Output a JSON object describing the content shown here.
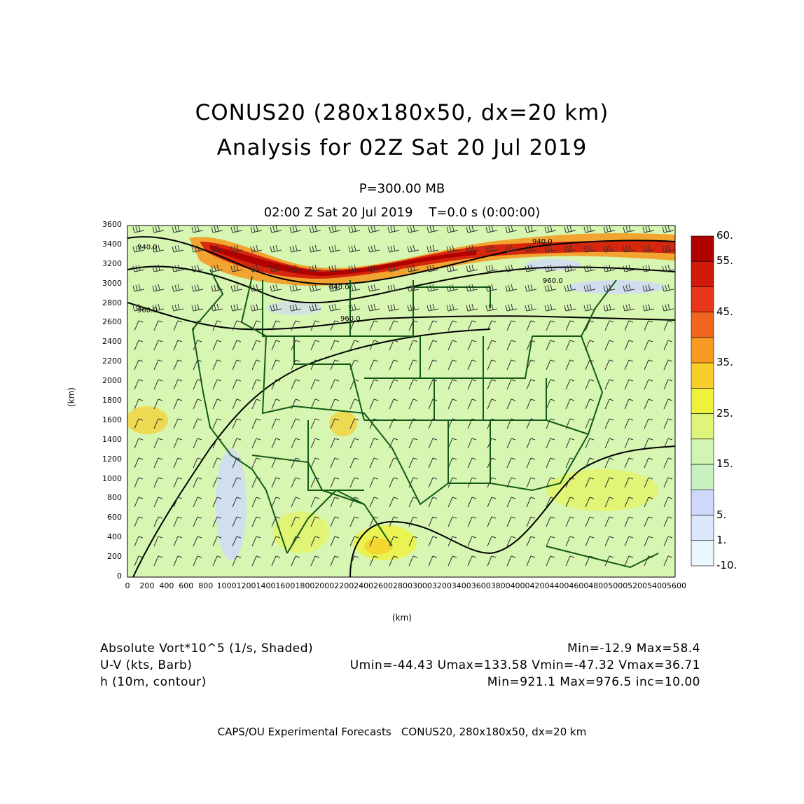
{
  "header": {
    "title_line1": "CONUS20 (280x180x50, dx=20 km)",
    "title_line2": "Analysis for 02Z Sat 20 Jul 2019",
    "pressure_level": "P=300.00 MB",
    "valid_time": "02:00 Z Sat 20 Jul 2019    T=0.0 s (0:00:00)"
  },
  "axes": {
    "x_label": "(km)",
    "y_label": "(km)",
    "x_ticks": [
      "0",
      "200",
      "400",
      "600",
      "800",
      "1000",
      "1200",
      "1400",
      "1600",
      "1800",
      "2000",
      "2200",
      "2400",
      "2600",
      "2800",
      "3000",
      "3200",
      "3400",
      "3600",
      "3800",
      "4000",
      "4200",
      "4400",
      "4600",
      "4800",
      "5000",
      "5200",
      "5400",
      "5600"
    ],
    "y_ticks": [
      "0",
      "200",
      "400",
      "600",
      "800",
      "1000",
      "1200",
      "1400",
      "1600",
      "1800",
      "2000",
      "2200",
      "2400",
      "2600",
      "2800",
      "3000",
      "3200",
      "3400",
      "3600"
    ],
    "x_range": [
      0,
      5600
    ],
    "y_range": [
      0,
      3600
    ]
  },
  "colorbar": {
    "labels": [
      "60.",
      "55.",
      "45.",
      "35.",
      "25.",
      "15.",
      "5.",
      "1.",
      "-10."
    ],
    "colors": [
      "#b00000",
      "#d21a0a",
      "#e8361c",
      "#f0661e",
      "#f59b22",
      "#f8cf2a",
      "#eef23a",
      "#dff57a",
      "#d3f5b4",
      "#c9f0bf",
      "#cfd8fb",
      "#dbe8fb",
      "#eaf6fb"
    ]
  },
  "contour_labels": [
    "940.0",
    "940.0",
    "960.0",
    "960.0",
    "940.0",
    "960.0"
  ],
  "legend": {
    "field1_name": "Absolute Vort*10^5 (1/s, Shaded)",
    "field1_stats": "Min=-12.9 Max=58.4",
    "field2_name": "U-V (kts, Barb)",
    "field2_stats": "Umin=-44.43 Umax=133.58 Vmin=-47.32 Vmax=36.71",
    "field3_name": "h (10m, contour)",
    "field3_stats": "Min=921.1 Max=976.5 inc=10.00"
  },
  "footer": {
    "credit": "CAPS/OU Experimental Forecasts   CONUS20, 280x180x50, dx=20 km"
  }
}
